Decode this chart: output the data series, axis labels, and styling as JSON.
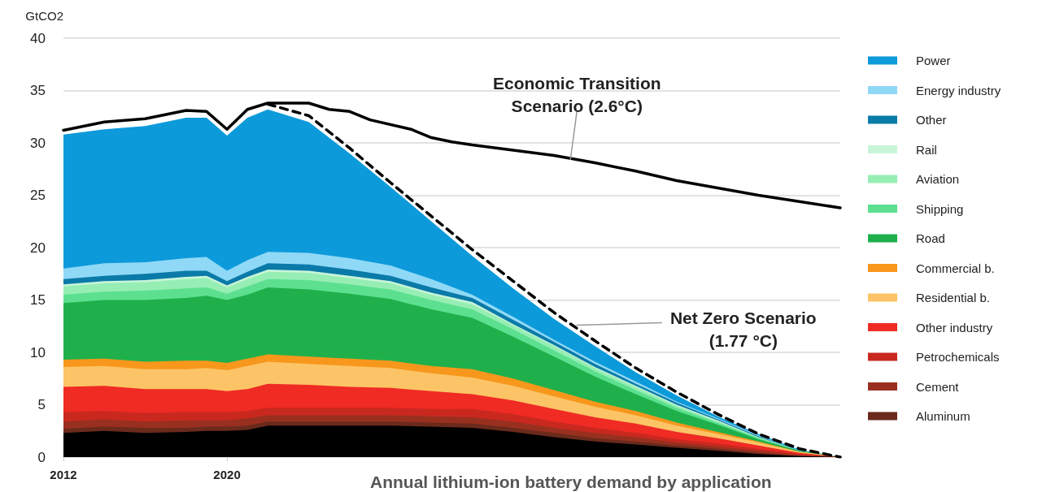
{
  "chart_data": {
    "type": "area",
    "stacked": true,
    "ylabel": "GtCO2",
    "xlim": [
      2012,
      2050
    ],
    "xticks": [
      2012,
      2020
    ],
    "ylim": [
      0,
      40
    ],
    "yticks": [
      0,
      5,
      10,
      15,
      20,
      25,
      30,
      35,
      40
    ],
    "grid": "y",
    "legend": "right",
    "marker": "none",
    "x": [
      2012,
      2014,
      2016,
      2018,
      2019,
      2020,
      2021,
      2022,
      2024,
      2026,
      2028,
      2030,
      2032,
      2034,
      2036,
      2038,
      2040,
      2042,
      2044,
      2046,
      2048,
      2050
    ],
    "series": [
      {
        "color": "#000000",
        "values": [
          2.3,
          2.5,
          2.3,
          2.4,
          2.5,
          2.5,
          2.6,
          3.0,
          3.0,
          3.0,
          3.0,
          2.9,
          2.8,
          2.4,
          1.9,
          1.5,
          1.2,
          0.9,
          0.6,
          0.3,
          0.1,
          0
        ]
      },
      {
        "name": "Aluminum",
        "color": "#6b2a1c",
        "values": [
          0.4,
          0.4,
          0.5,
          0.4,
          0.4,
          0.4,
          0.4,
          0.4,
          0.4,
          0.4,
          0.4,
          0.4,
          0.4,
          0.4,
          0.4,
          0.3,
          0.3,
          0.2,
          0.2,
          0.1,
          0,
          0
        ]
      },
      {
        "name": "Cement",
        "color": "#99301f",
        "values": [
          0.7,
          0.7,
          0.6,
          0.7,
          0.6,
          0.6,
          0.7,
          0.6,
          0.6,
          0.6,
          0.6,
          0.6,
          0.6,
          0.6,
          0.5,
          0.5,
          0.4,
          0.3,
          0.2,
          0.2,
          0.1,
          0
        ]
      },
      {
        "name": "Petrochemicals",
        "color": "#c9281f",
        "values": [
          0.9,
          0.8,
          0.8,
          0.8,
          0.8,
          0.8,
          0.7,
          0.7,
          0.7,
          0.7,
          0.7,
          0.7,
          0.8,
          0.7,
          0.6,
          0.5,
          0.4,
          0.3,
          0.3,
          0.2,
          0.1,
          0
        ]
      },
      {
        "name": "Other industry",
        "color": "#ef2b24",
        "values": [
          2.4,
          2.4,
          2.3,
          2.2,
          2.2,
          2.0,
          2.1,
          2.3,
          2.2,
          2.0,
          1.9,
          1.7,
          1.4,
          1.3,
          1.2,
          1.0,
          0.9,
          0.7,
          0.5,
          0.3,
          0.1,
          0
        ]
      },
      {
        "name": "Residential b.",
        "color": "#fcc466",
        "values": [
          1.9,
          1.9,
          1.9,
          1.9,
          2.0,
          2.0,
          2.2,
          2.1,
          2.0,
          2.0,
          1.9,
          1.7,
          1.6,
          1.4,
          1.2,
          1.0,
          0.8,
          0.6,
          0.4,
          0.3,
          0.1,
          0
        ]
      },
      {
        "name": "Commercial b.",
        "color": "#f7971c",
        "values": [
          0.7,
          0.7,
          0.7,
          0.8,
          0.7,
          0.7,
          0.7,
          0.7,
          0.7,
          0.7,
          0.7,
          0.7,
          0.8,
          0.7,
          0.6,
          0.5,
          0.4,
          0.3,
          0.2,
          0.1,
          0,
          0
        ]
      },
      {
        "name": "Road",
        "color": "#1fb04b",
        "values": [
          5.4,
          5.6,
          5.9,
          6.0,
          6.2,
          6.0,
          6.1,
          6.4,
          6.4,
          6.2,
          5.9,
          5.4,
          4.9,
          4.0,
          3.2,
          2.4,
          1.6,
          1.1,
          0.7,
          0.2,
          0.1,
          0
        ]
      },
      {
        "name": "Shipping",
        "color": "#5ce08f",
        "values": [
          0.8,
          0.8,
          0.9,
          0.9,
          0.8,
          0.6,
          0.8,
          0.8,
          0.9,
          0.9,
          0.9,
          0.9,
          0.8,
          0.7,
          0.6,
          0.5,
          0.4,
          0.3,
          0.2,
          0.1,
          0,
          0
        ]
      },
      {
        "name": "Aviation",
        "color": "#97eeb4",
        "values": [
          0.8,
          0.8,
          0.8,
          0.9,
          0.9,
          0.6,
          0.7,
          0.7,
          0.7,
          0.6,
          0.6,
          0.5,
          0.5,
          0.4,
          0.4,
          0.3,
          0.3,
          0.2,
          0.1,
          0.1,
          0,
          0
        ]
      },
      {
        "name": "Rail",
        "color": "#c8f5d8",
        "values": [
          0.2,
          0.2,
          0.2,
          0.2,
          0.2,
          0.2,
          0.2,
          0.2,
          0.2,
          0.2,
          0.2,
          0.2,
          0.2,
          0.1,
          0.1,
          0.1,
          0.1,
          0.1,
          0.1,
          0,
          0,
          0
        ]
      },
      {
        "name": "Other",
        "color": "#0a7aa8",
        "values": [
          0.5,
          0.5,
          0.6,
          0.6,
          0.5,
          0.4,
          0.5,
          0.6,
          0.6,
          0.6,
          0.5,
          0.5,
          0.4,
          0.4,
          0.3,
          0.3,
          0.2,
          0.2,
          0.1,
          0.1,
          0,
          0
        ]
      },
      {
        "name": "Energy industry",
        "color": "#8fd9f7",
        "values": [
          1.0,
          1.2,
          1.1,
          1.2,
          1.3,
          1.0,
          1.1,
          1.1,
          1.1,
          1.1,
          1.0,
          0.8,
          0.3,
          0.3,
          0.2,
          0.2,
          0.2,
          0.1,
          0.1,
          0.1,
          0,
          0
        ]
      },
      {
        "name": "Power",
        "color": "#0d9ada",
        "values": [
          12.8,
          12.8,
          13.0,
          13.4,
          13.3,
          12.9,
          13.6,
          13.6,
          12.5,
          10.0,
          7.5,
          5.5,
          3.7,
          2.7,
          2.0,
          1.5,
          0.9,
          0.6,
          0.2,
          0.1,
          0.1,
          0
        ]
      },
      {
        "type": "line",
        "color": "#000000",
        "line_style": "solid",
        "x": [
          2012,
          2014,
          2016,
          2018,
          2019,
          2020,
          2021,
          2022,
          2024,
          2025,
          2026,
          2027,
          2029,
          2030,
          2031,
          2032,
          2034,
          2036,
          2038,
          2040,
          2042,
          2044,
          2046,
          2048,
          2050
        ],
        "values": [
          31.2,
          32.0,
          32.3,
          33.1,
          33.0,
          31.3,
          33.2,
          33.8,
          33.8,
          33.2,
          33.0,
          32.2,
          31.3,
          30.5,
          30.1,
          29.8,
          29.3,
          28.8,
          28.1,
          27.3,
          26.4,
          25.7,
          25.0,
          24.4,
          23.8
        ]
      },
      {
        "type": "line",
        "color": "#000000",
        "line_style": "dashed",
        "x": [
          2022,
          2024,
          2026,
          2028,
          2030,
          2032,
          2034,
          2036,
          2038,
          2040,
          2042,
          2044,
          2046,
          2048,
          2050
        ],
        "values": [
          33.7,
          32.6,
          29.5,
          26.2,
          23.0,
          19.8,
          16.8,
          13.8,
          11.1,
          8.5,
          6.2,
          4.1,
          2.2,
          0.8,
          0
        ]
      }
    ],
    "annotations": [
      {
        "text": "Economic Transition\nScenario (2.6°C)",
        "x": 2036.8,
        "y": 28.4
      },
      {
        "text": "Net Zero Scenario\n(1.77 °C)",
        "x": 2037.1,
        "y": 12.6
      },
      "Annual lithium-ion battery demand by application"
    ]
  }
}
